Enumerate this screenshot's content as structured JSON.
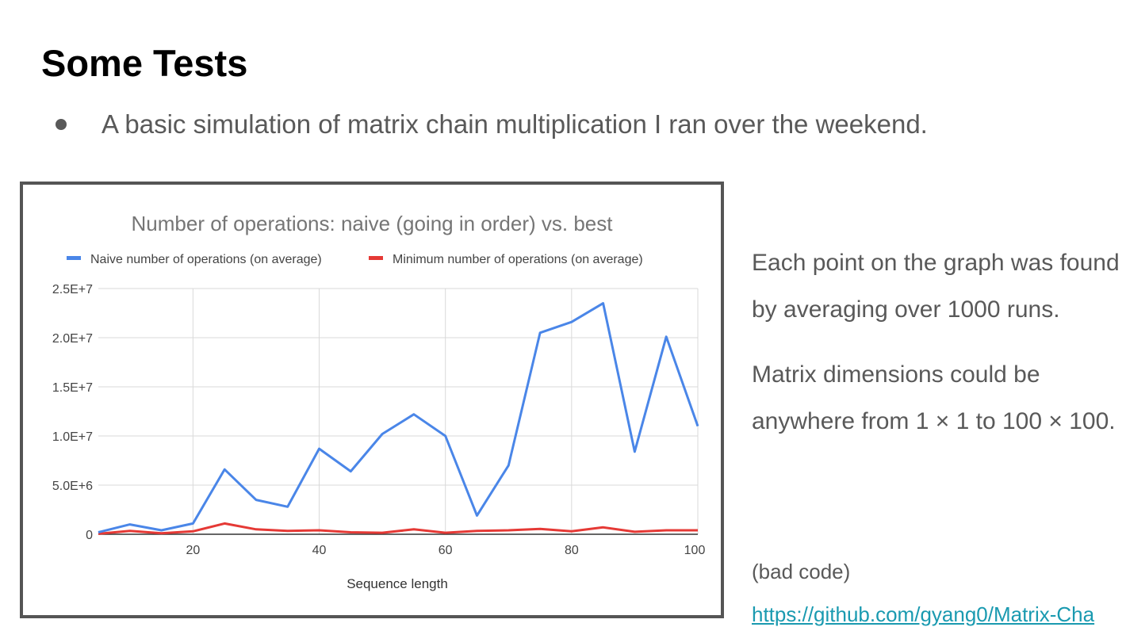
{
  "slide": {
    "title": "Some Tests",
    "bullet": "A basic simulation of matrix chain multiplication I ran over the weekend.",
    "side_paragraphs": [
      "Each point on the graph was found by averaging over 1000 runs.",
      "Matrix dimensions could be anywhere from 1 × 1 to 100 × 100."
    ],
    "code_note": "(bad code)",
    "link_text": "https://github.com/gyang0/Matrix-Cha"
  },
  "chart_data": {
    "type": "line",
    "title": "Number of operations: naive (going in order) vs. best",
    "xlabel": "Sequence length",
    "ylabel": "",
    "x": [
      5,
      10,
      15,
      20,
      25,
      30,
      35,
      40,
      45,
      50,
      55,
      60,
      65,
      70,
      75,
      80,
      85,
      90,
      95,
      100
    ],
    "xlim": [
      5,
      100
    ],
    "ylim": [
      0,
      25000000
    ],
    "x_ticks": [
      20,
      40,
      60,
      80,
      100
    ],
    "y_ticks": [
      {
        "value": 0,
        "label": "0"
      },
      {
        "value": 5000000,
        "label": "5.0E+6"
      },
      {
        "value": 10000000,
        "label": "1.0E+7"
      },
      {
        "value": 15000000,
        "label": "1.5E+7"
      },
      {
        "value": 20000000,
        "label": "2.0E+7"
      },
      {
        "value": 25000000,
        "label": "2.5E+7"
      }
    ],
    "grid": true,
    "legend_position": "top",
    "series": [
      {
        "name": "Naive number of operations (on average)",
        "color": "#4a86e8",
        "values": [
          200000,
          1000000,
          400000,
          1100000,
          6600000,
          3500000,
          2800000,
          8700000,
          6400000,
          10200000,
          12200000,
          10000000,
          1900000,
          7000000,
          20500000,
          21600000,
          23500000,
          8400000,
          20100000,
          11000000
        ]
      },
      {
        "name": "Minimum number of operations (on average)",
        "color": "#e53935",
        "values": [
          50000,
          350000,
          100000,
          300000,
          1100000,
          500000,
          350000,
          400000,
          200000,
          150000,
          500000,
          150000,
          350000,
          400000,
          550000,
          300000,
          700000,
          250000,
          400000,
          400000
        ]
      }
    ]
  }
}
